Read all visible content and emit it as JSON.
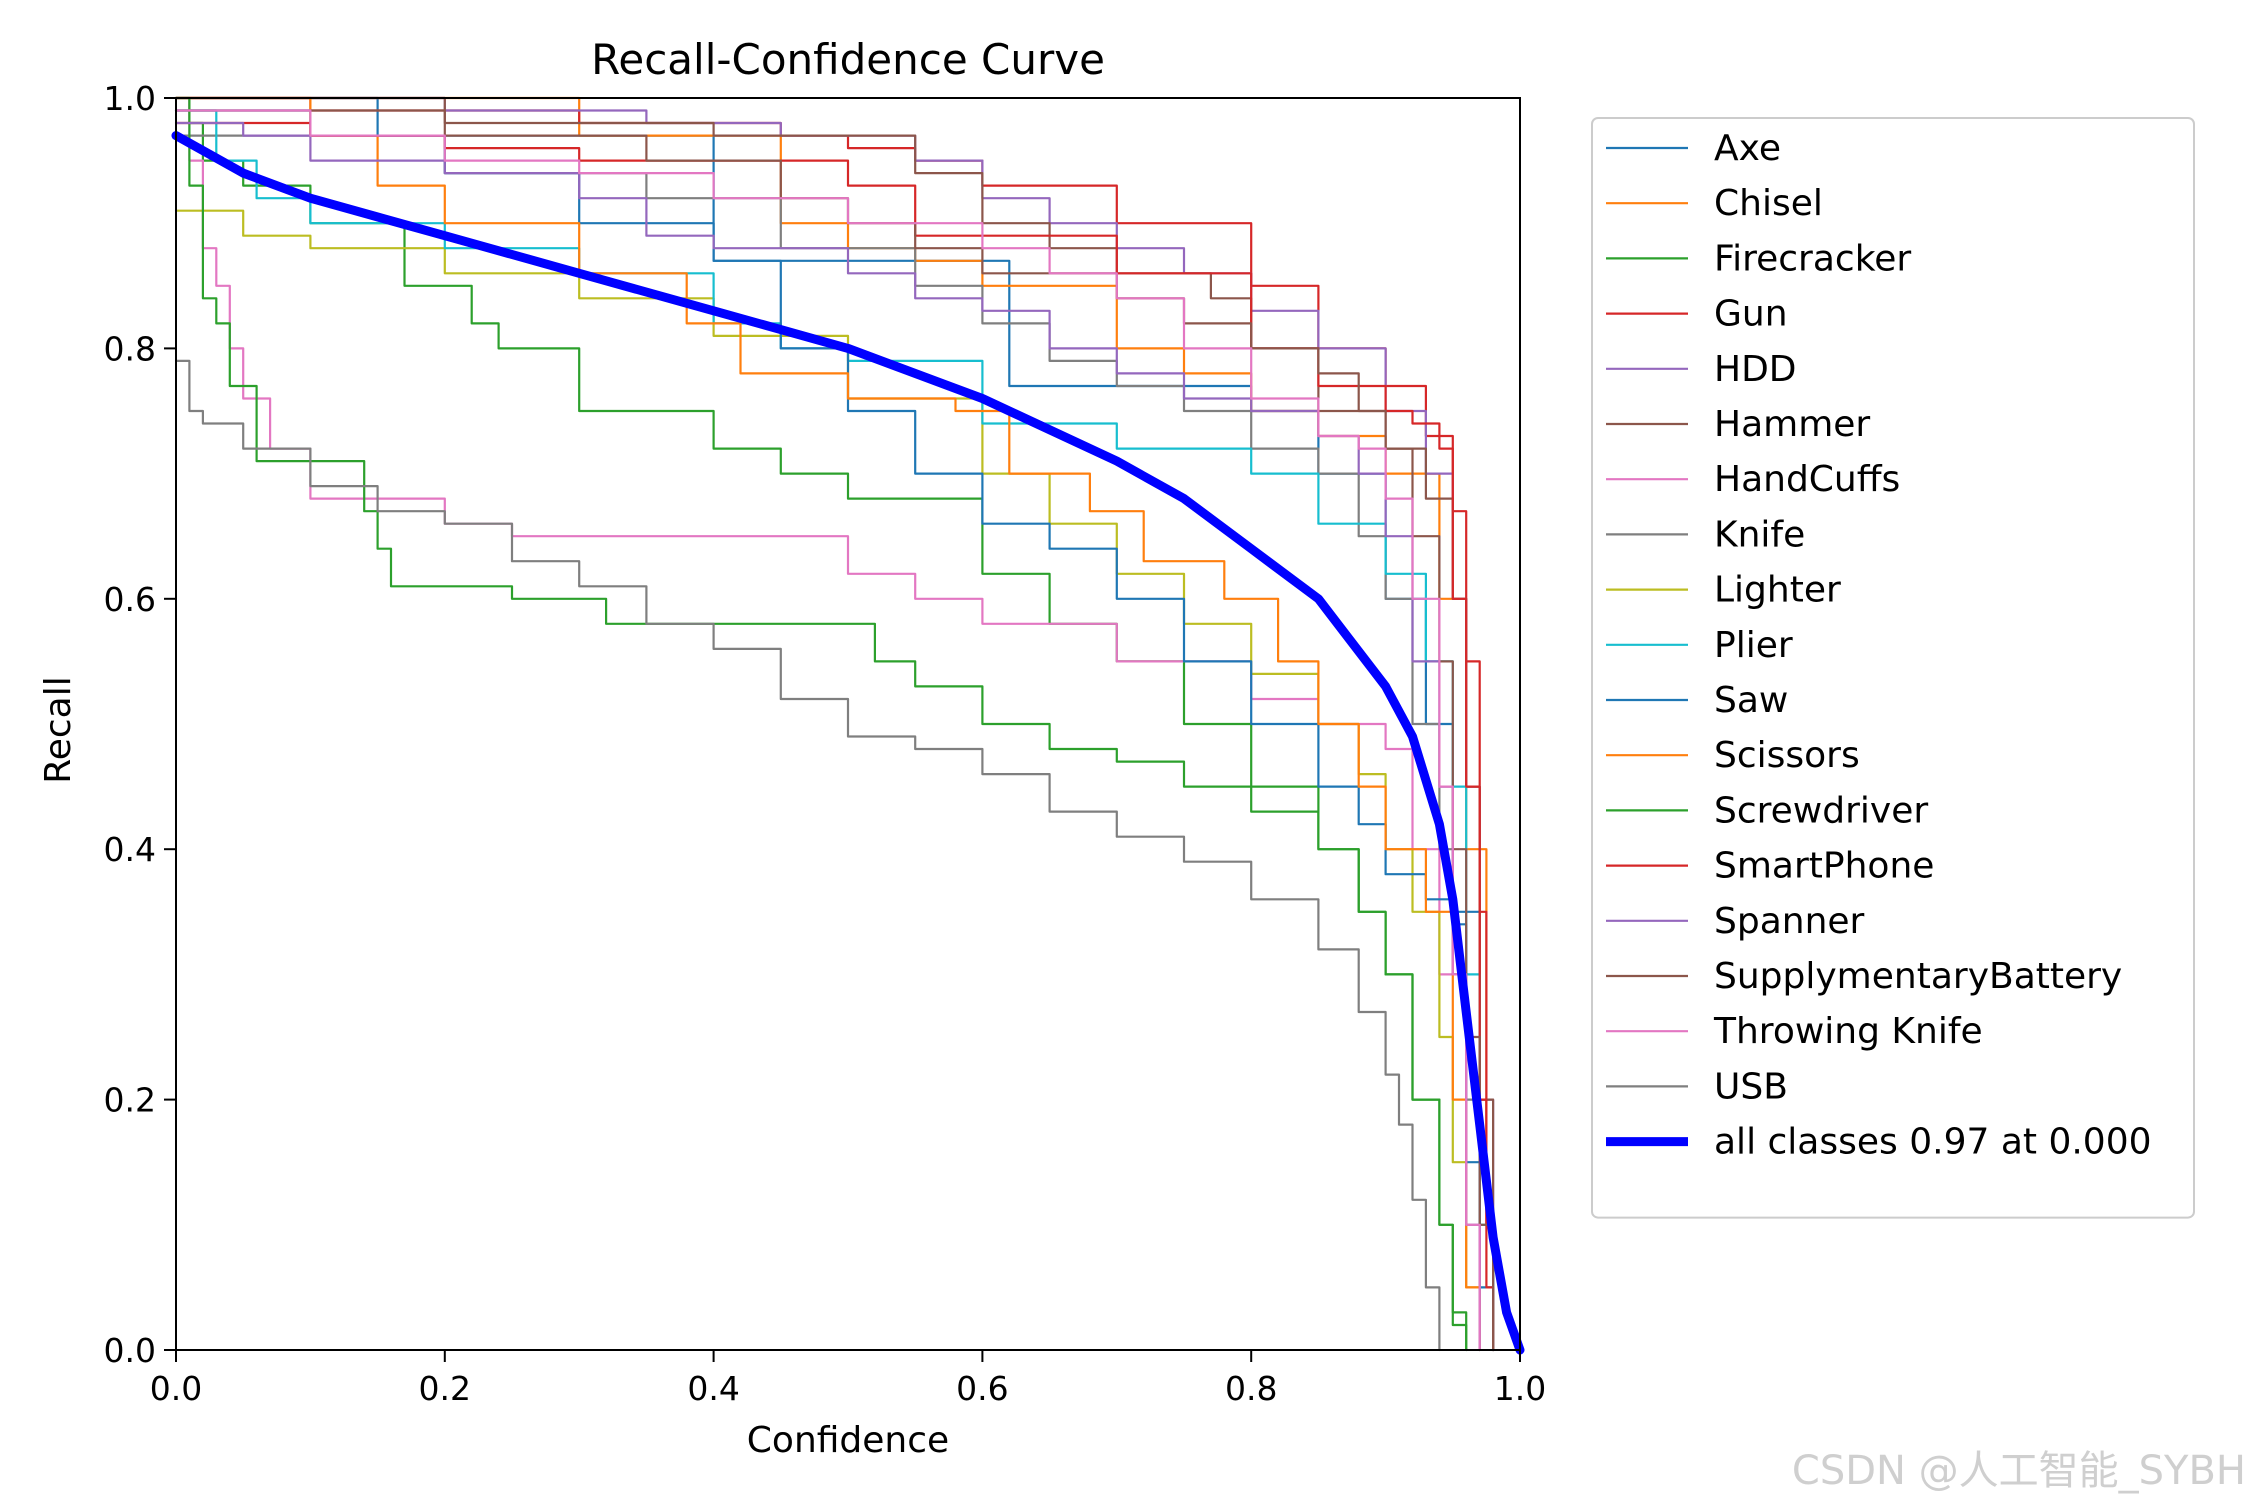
{
  "watermark": "CSDN @人工智能_SYBH",
  "chart_data": {
    "type": "line",
    "title": "Recall-Confidence Curve",
    "xlabel": "Confidence",
    "ylabel": "Recall",
    "xlim": [
      0,
      1
    ],
    "ylim": [
      0,
      1
    ],
    "grid": false,
    "legend_position": "outside-right",
    "x_ticks": [
      "0.0",
      "0.2",
      "0.4",
      "0.6",
      "0.8",
      "1.0"
    ],
    "y_ticks": [
      "0.0",
      "0.2",
      "0.4",
      "0.6",
      "0.8",
      "1.0"
    ],
    "series": [
      {
        "name": "Axe",
        "color": "#1f77b4",
        "x": [
          0.0,
          0.05,
          0.15,
          0.35,
          0.4,
          0.55,
          0.62,
          0.72,
          0.8,
          0.85,
          0.9,
          0.93,
          0.95,
          0.97,
          0.98
        ],
        "y": [
          1.0,
          1.0,
          0.97,
          0.97,
          0.87,
          0.87,
          0.77,
          0.77,
          0.75,
          0.7,
          0.6,
          0.5,
          0.35,
          0.05,
          0.0
        ]
      },
      {
        "name": "Chisel",
        "color": "#ff7f0e",
        "x": [
          0.0,
          0.2,
          0.3,
          0.45,
          0.5,
          0.55,
          0.6,
          0.7,
          0.75,
          0.8,
          0.85,
          0.9,
          0.94,
          0.96,
          0.975,
          0.98
        ],
        "y": [
          1.0,
          1.0,
          0.97,
          0.9,
          0.88,
          0.87,
          0.85,
          0.8,
          0.78,
          0.75,
          0.73,
          0.7,
          0.6,
          0.4,
          0.1,
          0.0
        ]
      },
      {
        "name": "Firecracker",
        "color": "#2ca02c",
        "x": [
          0.0,
          0.01,
          0.02,
          0.05,
          0.1,
          0.17,
          0.22,
          0.24,
          0.3,
          0.4,
          0.45,
          0.5,
          0.6,
          0.65,
          0.7,
          0.75,
          0.8,
          0.85,
          0.88,
          0.9,
          0.92,
          0.94,
          0.95,
          0.96
        ],
        "y": [
          1.0,
          0.98,
          0.95,
          0.93,
          0.9,
          0.85,
          0.82,
          0.8,
          0.75,
          0.72,
          0.7,
          0.68,
          0.62,
          0.58,
          0.55,
          0.5,
          0.45,
          0.4,
          0.35,
          0.3,
          0.2,
          0.1,
          0.03,
          0.0
        ]
      },
      {
        "name": "Gun",
        "color": "#d62728",
        "x": [
          0.0,
          0.1,
          0.3,
          0.45,
          0.5,
          0.55,
          0.6,
          0.7,
          0.8,
          0.85,
          0.9,
          0.93,
          0.95,
          0.96,
          0.97,
          0.975,
          0.98
        ],
        "y": [
          1.0,
          0.99,
          0.98,
          0.97,
          0.96,
          0.95,
          0.93,
          0.9,
          0.85,
          0.8,
          0.77,
          0.73,
          0.67,
          0.55,
          0.35,
          0.1,
          0.0
        ]
      },
      {
        "name": "HDD",
        "color": "#9467bd",
        "x": [
          0.0,
          0.2,
          0.35,
          0.45,
          0.55,
          0.6,
          0.65,
          0.7,
          0.75,
          0.8,
          0.85,
          0.9,
          0.93,
          0.95,
          0.96,
          0.97,
          0.98
        ],
        "y": [
          1.0,
          0.99,
          0.98,
          0.97,
          0.95,
          0.92,
          0.9,
          0.88,
          0.86,
          0.83,
          0.8,
          0.75,
          0.7,
          0.6,
          0.45,
          0.2,
          0.0
        ]
      },
      {
        "name": "Hammer",
        "color": "#8c564b",
        "x": [
          0.0,
          0.2,
          0.4,
          0.52,
          0.55,
          0.6,
          0.65,
          0.7,
          0.77,
          0.8,
          0.85,
          0.9,
          0.93,
          0.95,
          0.96,
          0.97,
          0.98
        ],
        "y": [
          1.0,
          0.98,
          0.97,
          0.97,
          0.94,
          0.9,
          0.88,
          0.86,
          0.84,
          0.8,
          0.75,
          0.72,
          0.68,
          0.6,
          0.45,
          0.2,
          0.0
        ]
      },
      {
        "name": "HandCuffs",
        "color": "#e377c2",
        "x": [
          0.0,
          0.01,
          0.02,
          0.03,
          0.04,
          0.05,
          0.07,
          0.1,
          0.15,
          0.2,
          0.25,
          0.3,
          0.4,
          0.5,
          0.55,
          0.6,
          0.7,
          0.8,
          0.85,
          0.9,
          0.92,
          0.94,
          0.96,
          0.97
        ],
        "y": [
          1.0,
          0.95,
          0.88,
          0.85,
          0.8,
          0.76,
          0.72,
          0.68,
          0.68,
          0.66,
          0.65,
          0.65,
          0.65,
          0.62,
          0.6,
          0.58,
          0.55,
          0.52,
          0.5,
          0.48,
          0.4,
          0.3,
          0.1,
          0.0
        ]
      },
      {
        "name": "Knife",
        "color": "#7f7f7f",
        "x": [
          0.0,
          0.2,
          0.35,
          0.45,
          0.55,
          0.6,
          0.65,
          0.7,
          0.75,
          0.8,
          0.85,
          0.88,
          0.9,
          0.92,
          0.94,
          0.95,
          0.96,
          0.97,
          0.98
        ],
        "y": [
          0.97,
          0.94,
          0.92,
          0.88,
          0.85,
          0.82,
          0.79,
          0.77,
          0.75,
          0.72,
          0.7,
          0.65,
          0.6,
          0.5,
          0.4,
          0.3,
          0.2,
          0.1,
          0.0
        ]
      },
      {
        "name": "Lighter",
        "color": "#bcbd22",
        "x": [
          0.0,
          0.05,
          0.1,
          0.2,
          0.3,
          0.4,
          0.5,
          0.6,
          0.65,
          0.7,
          0.75,
          0.8,
          0.85,
          0.88,
          0.9,
          0.92,
          0.94,
          0.95,
          0.96,
          0.97
        ],
        "y": [
          0.91,
          0.89,
          0.88,
          0.86,
          0.84,
          0.81,
          0.76,
          0.7,
          0.66,
          0.62,
          0.58,
          0.54,
          0.5,
          0.46,
          0.4,
          0.35,
          0.25,
          0.15,
          0.05,
          0.0
        ]
      },
      {
        "name": "Plier",
        "color": "#17becf",
        "x": [
          0.0,
          0.03,
          0.06,
          0.1,
          0.2,
          0.3,
          0.4,
          0.45,
          0.5,
          0.6,
          0.7,
          0.8,
          0.85,
          0.9,
          0.93,
          0.95,
          0.96,
          0.97,
          0.98
        ],
        "y": [
          0.99,
          0.95,
          0.92,
          0.9,
          0.88,
          0.86,
          0.82,
          0.8,
          0.79,
          0.74,
          0.72,
          0.7,
          0.66,
          0.62,
          0.55,
          0.45,
          0.3,
          0.1,
          0.0
        ]
      },
      {
        "name": "Saw",
        "color": "#1f77b4",
        "x": [
          0.0,
          0.1,
          0.2,
          0.3,
          0.4,
          0.45,
          0.5,
          0.55,
          0.6,
          0.65,
          0.7,
          0.75,
          0.8,
          0.85,
          0.88,
          0.9,
          0.93,
          0.95,
          0.96,
          0.97
        ],
        "y": [
          0.99,
          0.97,
          0.94,
          0.9,
          0.87,
          0.8,
          0.75,
          0.7,
          0.66,
          0.64,
          0.6,
          0.55,
          0.5,
          0.45,
          0.42,
          0.38,
          0.36,
          0.34,
          0.15,
          0.0
        ]
      },
      {
        "name": "Scissors",
        "color": "#ff7f0e",
        "x": [
          0.0,
          0.1,
          0.15,
          0.2,
          0.3,
          0.38,
          0.42,
          0.5,
          0.58,
          0.62,
          0.68,
          0.72,
          0.78,
          0.82,
          0.85,
          0.88,
          0.9,
          0.93,
          0.95,
          0.96,
          0.97
        ],
        "y": [
          1.0,
          0.97,
          0.93,
          0.9,
          0.86,
          0.82,
          0.78,
          0.76,
          0.75,
          0.7,
          0.67,
          0.63,
          0.6,
          0.55,
          0.5,
          0.45,
          0.4,
          0.35,
          0.2,
          0.05,
          0.0
        ]
      },
      {
        "name": "Screwdriver",
        "color": "#2ca02c",
        "x": [
          0.0,
          0.01,
          0.02,
          0.03,
          0.04,
          0.06,
          0.1,
          0.13,
          0.14,
          0.15,
          0.16,
          0.25,
          0.32,
          0.38,
          0.45,
          0.51,
          0.52,
          0.55,
          0.6,
          0.65,
          0.7,
          0.75,
          0.8,
          0.85,
          0.88,
          0.9,
          0.92,
          0.94,
          0.95,
          0.96
        ],
        "y": [
          1.0,
          0.93,
          0.84,
          0.82,
          0.77,
          0.71,
          0.71,
          0.71,
          0.67,
          0.64,
          0.61,
          0.6,
          0.58,
          0.58,
          0.58,
          0.58,
          0.55,
          0.53,
          0.5,
          0.48,
          0.47,
          0.45,
          0.43,
          0.4,
          0.35,
          0.3,
          0.2,
          0.1,
          0.02,
          0.0
        ]
      },
      {
        "name": "SmartPhone",
        "color": "#d62728",
        "x": [
          0.0,
          0.1,
          0.2,
          0.3,
          0.4,
          0.5,
          0.55,
          0.6,
          0.7,
          0.8,
          0.85,
          0.9,
          0.92,
          0.94,
          0.95,
          0.96,
          0.97,
          0.975,
          0.98
        ],
        "y": [
          0.98,
          0.97,
          0.96,
          0.95,
          0.95,
          0.93,
          0.89,
          0.89,
          0.86,
          0.8,
          0.77,
          0.75,
          0.74,
          0.72,
          0.6,
          0.45,
          0.2,
          0.05,
          0.0
        ]
      },
      {
        "name": "Spanner",
        "color": "#9467bd",
        "x": [
          0.0,
          0.05,
          0.1,
          0.2,
          0.3,
          0.35,
          0.4,
          0.5,
          0.55,
          0.6,
          0.65,
          0.7,
          0.75,
          0.8,
          0.85,
          0.88,
          0.9,
          0.92,
          0.94,
          0.95,
          0.96,
          0.97
        ],
        "y": [
          0.98,
          0.97,
          0.95,
          0.94,
          0.92,
          0.89,
          0.88,
          0.86,
          0.84,
          0.83,
          0.8,
          0.78,
          0.76,
          0.75,
          0.73,
          0.7,
          0.65,
          0.55,
          0.45,
          0.3,
          0.1,
          0.0
        ]
      },
      {
        "name": "SupplymentaryBattery",
        "color": "#8c564b",
        "x": [
          0.0,
          0.2,
          0.35,
          0.45,
          0.5,
          0.55,
          0.6,
          0.7,
          0.75,
          0.8,
          0.85,
          0.88,
          0.9,
          0.92,
          0.94,
          0.95,
          0.96,
          0.97,
          0.98
        ],
        "y": [
          0.99,
          0.97,
          0.95,
          0.92,
          0.9,
          0.88,
          0.86,
          0.84,
          0.82,
          0.8,
          0.78,
          0.75,
          0.72,
          0.65,
          0.55,
          0.4,
          0.25,
          0.1,
          0.0
        ]
      },
      {
        "name": "Throwing Knife",
        "color": "#e377c2",
        "x": [
          0.0,
          0.1,
          0.2,
          0.3,
          0.4,
          0.5,
          0.6,
          0.65,
          0.7,
          0.75,
          0.8,
          0.85,
          0.88,
          0.9,
          0.92,
          0.94,
          0.95,
          0.96,
          0.97
        ],
        "y": [
          0.99,
          0.97,
          0.95,
          0.94,
          0.92,
          0.9,
          0.88,
          0.86,
          0.84,
          0.8,
          0.76,
          0.73,
          0.72,
          0.68,
          0.6,
          0.45,
          0.3,
          0.1,
          0.0
        ]
      },
      {
        "name": "USB",
        "color": "#7f7f7f",
        "x": [
          0.0,
          0.01,
          0.02,
          0.05,
          0.1,
          0.15,
          0.2,
          0.25,
          0.3,
          0.35,
          0.4,
          0.45,
          0.5,
          0.55,
          0.6,
          0.65,
          0.7,
          0.75,
          0.8,
          0.85,
          0.88,
          0.9,
          0.91,
          0.92,
          0.93,
          0.94
        ],
        "y": [
          0.79,
          0.75,
          0.74,
          0.72,
          0.69,
          0.67,
          0.66,
          0.63,
          0.61,
          0.58,
          0.56,
          0.52,
          0.49,
          0.48,
          0.46,
          0.43,
          0.41,
          0.39,
          0.36,
          0.32,
          0.27,
          0.22,
          0.18,
          0.12,
          0.05,
          0.0
        ]
      },
      {
        "name": "all classes 0.97 at 0.000",
        "color": "#0000ff",
        "bold": true,
        "x": [
          0.0,
          0.05,
          0.1,
          0.2,
          0.3,
          0.4,
          0.5,
          0.6,
          0.7,
          0.75,
          0.8,
          0.85,
          0.9,
          0.92,
          0.94,
          0.95,
          0.96,
          0.97,
          0.98,
          0.99,
          1.0
        ],
        "y": [
          0.97,
          0.94,
          0.92,
          0.89,
          0.86,
          0.83,
          0.8,
          0.76,
          0.71,
          0.68,
          0.64,
          0.6,
          0.53,
          0.49,
          0.42,
          0.36,
          0.27,
          0.18,
          0.09,
          0.03,
          0.0
        ]
      }
    ]
  }
}
